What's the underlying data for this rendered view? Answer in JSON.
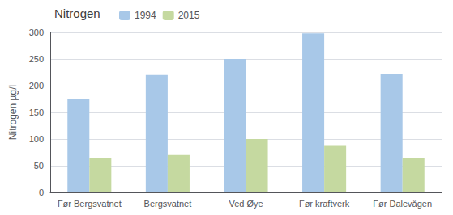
{
  "chart_data": {
    "type": "bar",
    "title": "Nitrogen",
    "ylabel": "Nitrogen µg/l",
    "categories": [
      "Før Bergsvatnet",
      "Bergsvatnet",
      "Ved Øye",
      "Før kraftverk",
      "Før Dalevågen"
    ],
    "series": [
      {
        "name": "1994",
        "color": "#a8c8e8",
        "values": [
          175,
          220,
          250,
          298,
          222
        ]
      },
      {
        "name": "2015",
        "color": "#c5d9a0",
        "values": [
          65,
          70,
          100,
          87,
          65
        ]
      }
    ],
    "ylim": [
      0,
      300
    ],
    "yticks": [
      0,
      50,
      100,
      150,
      200,
      250,
      300
    ],
    "grid": true,
    "legend": "upper left"
  }
}
